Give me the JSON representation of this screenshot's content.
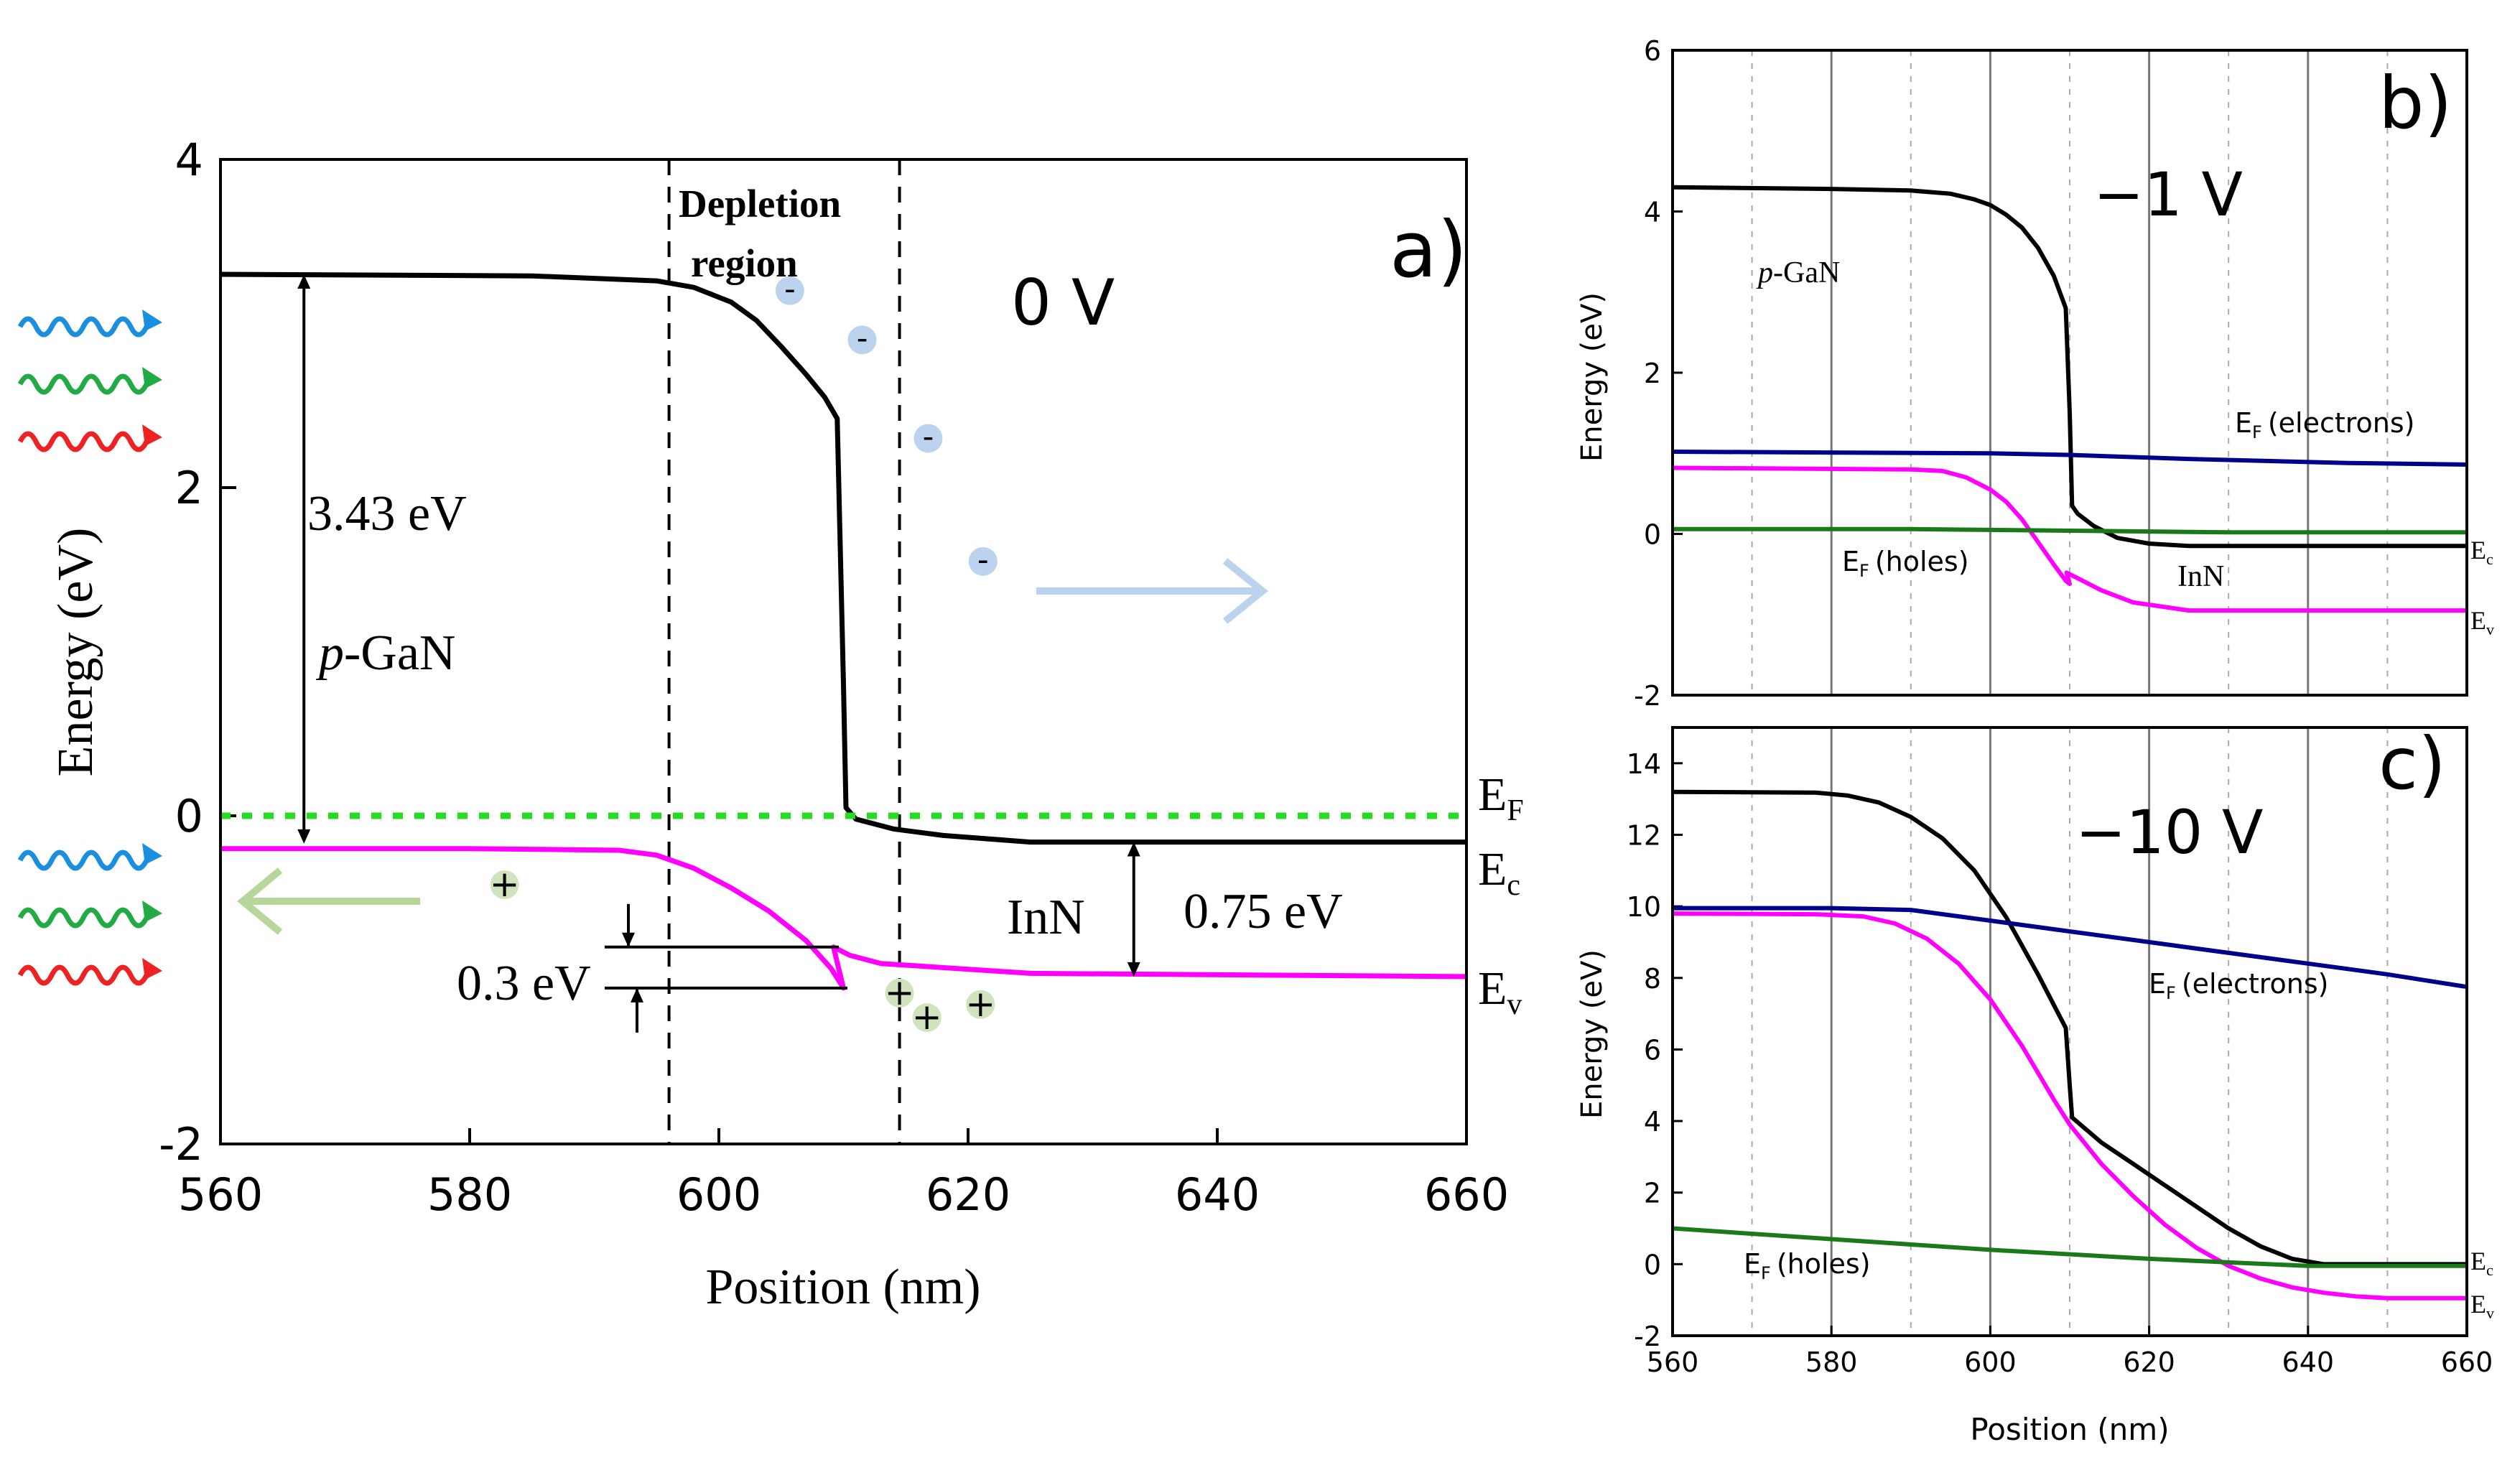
{
  "chart_data": [
    {
      "panel": "a)",
      "type": "line",
      "title": "0 V",
      "xlabel": "Position (nm)",
      "ylabel": "Energy (eV)",
      "xlim": [
        560,
        660
      ],
      "ylim": [
        -2,
        4
      ],
      "xticks": [
        560,
        580,
        600,
        620,
        640,
        660
      ],
      "yticks": [
        -2,
        0,
        2,
        4
      ],
      "series": [
        {
          "name": "E_c",
          "color": "#000000",
          "x": [
            560,
            585,
            595,
            598,
            601,
            603,
            605,
            607,
            608.5,
            609.5,
            610,
            610.2,
            611,
            614,
            618,
            625,
            660
          ],
          "y": [
            3.3,
            3.29,
            3.26,
            3.22,
            3.13,
            3.02,
            2.86,
            2.69,
            2.55,
            2.42,
            0.8,
            0.05,
            -0.02,
            -0.08,
            -0.12,
            -0.16,
            -0.16
          ]
        },
        {
          "name": "E_v",
          "color": "#ff00ff",
          "x": [
            560,
            580,
            592,
            595,
            598,
            601,
            604,
            607,
            609,
            610,
            609.2,
            610.5,
            613,
            617,
            625,
            660
          ],
          "y": [
            -0.2,
            -0.2,
            -0.21,
            -0.24,
            -0.32,
            -0.44,
            -0.58,
            -0.76,
            -0.93,
            -1.05,
            -0.8,
            -0.85,
            -0.9,
            -0.92,
            -0.96,
            -0.98
          ]
        },
        {
          "name": "E_F",
          "color": "#22dd22",
          "style": "dotted",
          "x": [
            560,
            660
          ],
          "y": [
            0,
            0
          ]
        }
      ],
      "vlines": [
        596,
        614.5
      ],
      "annotations": {
        "depletion_line1": "Depletion",
        "depletion_line2": "region",
        "bandgap_gan": "3.43 eV",
        "pgan_p": "p",
        "pgan_rest": "-GaN",
        "inn": "InN",
        "bandgap_inn": "0.75 eV",
        "offset": "0.3 eV",
        "label_EF_main": "E",
        "label_EF_sub": "F",
        "label_Ec_main": "E",
        "label_Ec_sub": "c",
        "label_Ev_main": "E",
        "label_Ev_sub": "v",
        "minus": "-",
        "plus": "+"
      },
      "electrons": [
        [
          605.7,
          3.2
        ],
        [
          611.5,
          2.9
        ],
        [
          616.8,
          2.3
        ],
        [
          621.2,
          1.55
        ]
      ],
      "holes": [
        [
          582.8,
          -0.42
        ],
        [
          614.5,
          -1.08
        ],
        [
          616.7,
          -1.23
        ],
        [
          621.0,
          -1.15
        ]
      ]
    },
    {
      "panel": "b)",
      "type": "line",
      "title": "−1 V",
      "xlabel": "",
      "ylabel": "Energy (eV)",
      "xlim": [
        560,
        660
      ],
      "ylim": [
        -2,
        6
      ],
      "xticks": [],
      "yticks": [
        -2,
        0,
        2,
        4,
        6
      ],
      "series": [
        {
          "name": "E_c",
          "color": "#000000",
          "x": [
            560,
            580,
            590,
            595,
            598,
            600,
            602,
            604,
            606,
            608,
            609.5,
            610,
            610.3,
            611,
            613,
            616,
            620,
            625,
            660
          ],
          "y": [
            4.3,
            4.28,
            4.26,
            4.22,
            4.15,
            4.08,
            3.96,
            3.8,
            3.55,
            3.2,
            2.8,
            1.5,
            0.35,
            0.25,
            0.1,
            -0.05,
            -0.12,
            -0.15,
            -0.15
          ]
        },
        {
          "name": "E_v",
          "color": "#ff00ff",
          "x": [
            560,
            590,
            594,
            597,
            600,
            602,
            604,
            606,
            608,
            609.5,
            610,
            609.6,
            611,
            614,
            618,
            625,
            660
          ],
          "y": [
            0.82,
            0.8,
            0.78,
            0.7,
            0.55,
            0.4,
            0.18,
            -0.1,
            -0.38,
            -0.58,
            -0.62,
            -0.48,
            -0.55,
            -0.7,
            -0.85,
            -0.95,
            -0.95
          ]
        },
        {
          "name": "E_F (electrons)",
          "color": "#00008b",
          "x": [
            560,
            600,
            610,
            625,
            645,
            660
          ],
          "y": [
            1.02,
            1.0,
            0.98,
            0.93,
            0.88,
            0.86
          ]
        },
        {
          "name": "E_F (holes)",
          "color": "#1a7a1a",
          "x": [
            560,
            590,
            610,
            630,
            660
          ],
          "y": [
            0.06,
            0.06,
            0.04,
            0.02,
            0.02
          ]
        }
      ],
      "annotations": {
        "pgan_p": "p",
        "pgan_rest": "-GaN",
        "ef_e_main": "E",
        "ef_e_sub": "F",
        "ef_e_text": "(electrons)",
        "ef_h_main": "E",
        "ef_h_sub": "F",
        "ef_h_text": "(holes)",
        "inn": "InN",
        "edge_c_main": "E",
        "edge_c_sub": "c",
        "edge_v_main": "E",
        "edge_v_sub": "v"
      }
    },
    {
      "panel": "c)",
      "type": "line",
      "title": "−10 V",
      "xlabel": "Position (nm)",
      "ylabel": "Energy (eV)",
      "xlim": [
        560,
        660
      ],
      "ylim": [
        -2,
        15
      ],
      "xticks": [
        560,
        580,
        600,
        620,
        640,
        660
      ],
      "yticks": [
        -2,
        0,
        2,
        4,
        6,
        8,
        10,
        12,
        14
      ],
      "series": [
        {
          "name": "E_c",
          "color": "#000000",
          "x": [
            560,
            578,
            582,
            586,
            590,
            594,
            598,
            602,
            606,
            609.5,
            610,
            610.3,
            614,
            618,
            622,
            626,
            630,
            634,
            638,
            642,
            660
          ],
          "y": [
            13.2,
            13.18,
            13.1,
            12.9,
            12.5,
            11.9,
            11.0,
            9.7,
            8.1,
            6.6,
            5.0,
            4.1,
            3.4,
            2.8,
            2.2,
            1.6,
            1.0,
            0.5,
            0.15,
            0.0,
            0.0
          ]
        },
        {
          "name": "E_v",
          "color": "#ff00ff",
          "x": [
            560,
            578,
            584,
            588,
            592,
            596,
            600,
            604,
            608,
            610,
            614,
            618,
            622,
            626,
            630,
            634,
            638,
            642,
            646,
            650,
            660
          ],
          "y": [
            9.8,
            9.78,
            9.72,
            9.52,
            9.1,
            8.4,
            7.4,
            6.1,
            4.6,
            3.9,
            2.8,
            1.9,
            1.1,
            0.45,
            -0.05,
            -0.4,
            -0.65,
            -0.8,
            -0.9,
            -0.95,
            -0.95
          ]
        },
        {
          "name": "E_F (electrons)",
          "color": "#00008b",
          "x": [
            560,
            580,
            590,
            600,
            610,
            620,
            630,
            640,
            650,
            660
          ],
          "y": [
            9.95,
            9.95,
            9.9,
            9.6,
            9.3,
            9.0,
            8.7,
            8.4,
            8.1,
            7.75
          ]
        },
        {
          "name": "E_F (holes)",
          "color": "#1a7a1a",
          "x": [
            560,
            580,
            600,
            620,
            640,
            660
          ],
          "y": [
            1.0,
            0.7,
            0.4,
            0.15,
            -0.05,
            -0.05
          ]
        }
      ],
      "annotations": {
        "ef_e_main": "E",
        "ef_e_sub": "F",
        "ef_e_text": "(electrons)",
        "ef_h_main": "E",
        "ef_h_sub": "F",
        "ef_h_text": "(holes)",
        "edge_c_main": "E",
        "edge_c_sub": "c",
        "edge_v_main": "E",
        "edge_v_sub": "v"
      }
    }
  ],
  "decoration": {
    "photon_colors": [
      "#1a8fe0",
      "#22aa44",
      "#ee2222"
    ],
    "arrow_hole_color": "#b7d69a",
    "arrow_electron_color": "#bcd3ef"
  }
}
